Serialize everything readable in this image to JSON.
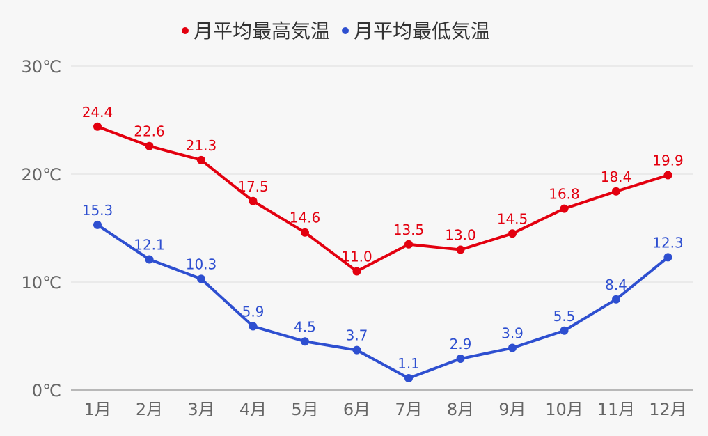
{
  "chart_data": {
    "type": "line",
    "title": "",
    "xlabel": "",
    "ylabel": "",
    "ylim": [
      0,
      30
    ],
    "yticks": [
      0,
      10,
      20,
      30
    ],
    "y_unit": "℃",
    "grid": true,
    "legend_position": "top-center",
    "categories": [
      "1月",
      "2月",
      "3月",
      "4月",
      "5月",
      "6月",
      "7月",
      "8月",
      "9月",
      "10月",
      "11月",
      "12月"
    ],
    "series": [
      {
        "name": "月平均最高気温",
        "color": "#e3000f",
        "values": [
          24.4,
          22.6,
          21.3,
          17.5,
          14.6,
          11.0,
          13.5,
          13.0,
          14.5,
          16.8,
          18.4,
          19.9
        ],
        "labels": [
          "24.4",
          "22.6",
          "21.3",
          "17.5",
          "14.6",
          "11.0",
          "13.5",
          "13.0",
          "14.5",
          "16.8",
          "18.4",
          "19.9"
        ]
      },
      {
        "name": "月平均最低気温",
        "color": "#2e4fd0",
        "values": [
          15.3,
          12.1,
          10.3,
          5.9,
          4.5,
          3.7,
          1.1,
          2.9,
          3.9,
          5.5,
          8.4,
          12.3
        ],
        "labels": [
          "15.3",
          "12.1",
          "10.3",
          "5.9",
          "4.5",
          "3.7",
          "1.1",
          "2.9",
          "3.9",
          "5.5",
          "8.4",
          "12.3"
        ]
      }
    ]
  }
}
